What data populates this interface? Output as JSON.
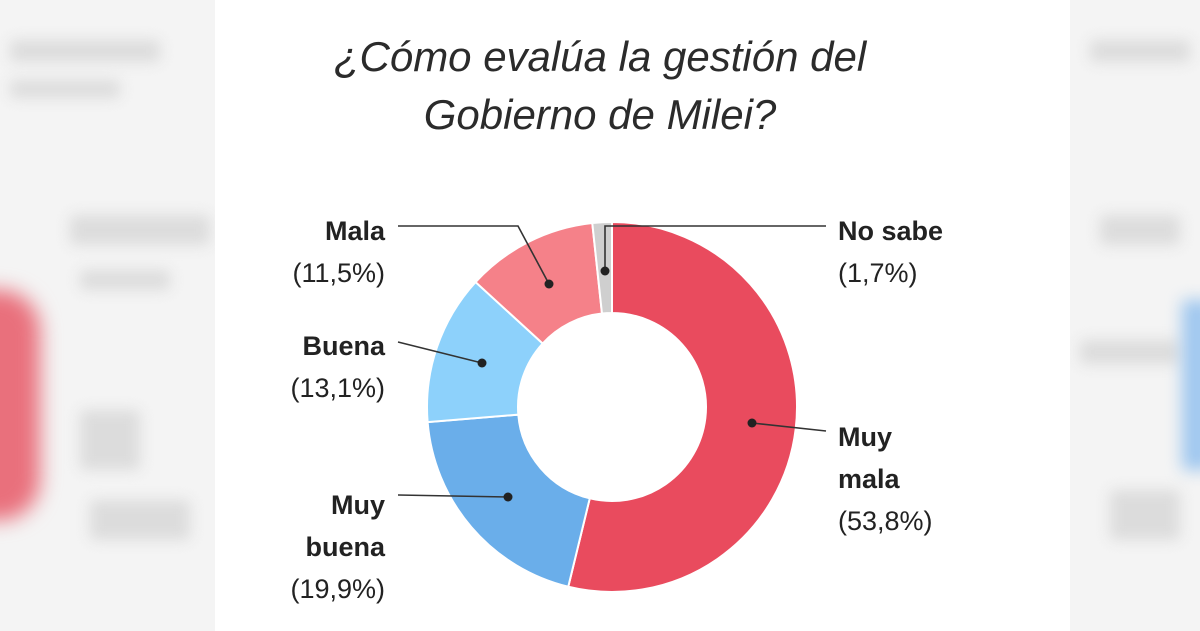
{
  "chart_data": {
    "type": "pie",
    "variant": "donut",
    "title": [
      "¿Cómo evalúa la gestión del",
      "Gobierno de Milei?"
    ],
    "slices": [
      {
        "key": "muy_mala",
        "name_lines": [
          "Muy",
          "mala"
        ],
        "value": 53.8,
        "value_label": "(53,8%)",
        "color": "#e94b5e"
      },
      {
        "key": "muy_buena",
        "name_lines": [
          "Muy",
          "buena"
        ],
        "value": 19.9,
        "value_label": "(19,9%)",
        "color": "#6aaeea"
      },
      {
        "key": "buena",
        "name_lines": [
          "Buena"
        ],
        "value": 13.1,
        "value_label": "(13,1%)",
        "color": "#8dd1fb"
      },
      {
        "key": "mala",
        "name_lines": [
          "Mala"
        ],
        "value": 11.5,
        "value_label": "(11,5%)",
        "color": "#f58189"
      },
      {
        "key": "no_sabe",
        "name_lines": [
          "No sabe"
        ],
        "value": 1.7,
        "value_label": "(1,7%)",
        "color": "#cfcfcf"
      }
    ],
    "order": "clockwise from top",
    "legend": "none (direct labels)"
  }
}
